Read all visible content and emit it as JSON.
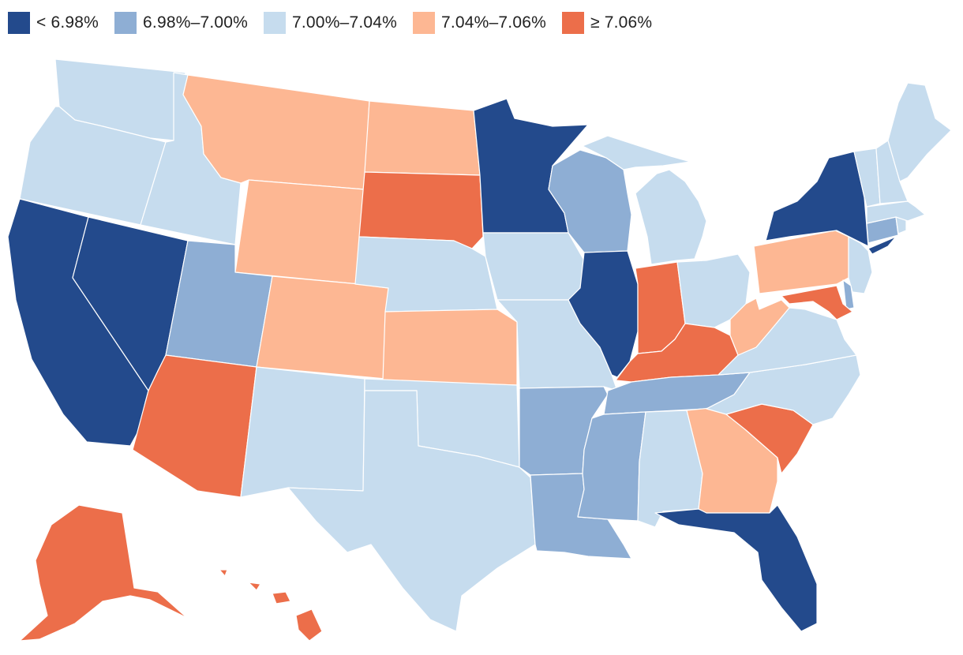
{
  "legend": [
    {
      "id": "c1",
      "label": "< 6.98%",
      "color": "#234a8c"
    },
    {
      "id": "c2",
      "label": "6.98%–7.00%",
      "color": "#8eaed4"
    },
    {
      "id": "c3",
      "label": "7.00%–7.04%",
      "color": "#c6dcee"
    },
    {
      "id": "c4",
      "label": "7.04%–7.06%",
      "color": "#fdb793"
    },
    {
      "id": "c5",
      "label": "≥ 7.06%",
      "color": "#ec6e4a"
    }
  ],
  "states": {
    "WA": "c3",
    "OR": "c3",
    "CA": "c1",
    "NV": "c1",
    "ID": "c3",
    "MT": "c4",
    "WY": "c4",
    "UT": "c2",
    "AZ": "c5",
    "CO": "c4",
    "NM": "c3",
    "ND": "c4",
    "SD": "c5",
    "NE": "c3",
    "KS": "c4",
    "OK": "c3",
    "TX": "c3",
    "MN": "c1",
    "IA": "c3",
    "MO": "c3",
    "AR": "c2",
    "LA": "c2",
    "WI": "c2",
    "IL": "c1",
    "MI": "c3",
    "IN": "c5",
    "OH": "c3",
    "KY": "c5",
    "TN": "c2",
    "MS": "c2",
    "AL": "c3",
    "GA": "c4",
    "FL": "c1",
    "SC": "c5",
    "NC": "c3",
    "VA": "c3",
    "WV": "c4",
    "PA": "c4",
    "NY": "c1",
    "NJ": "c3",
    "DE": "c2",
    "MD": "c5",
    "CT": "c2",
    "RI": "c3",
    "MA": "c3",
    "VT": "c3",
    "NH": "c3",
    "ME": "c3",
    "AK": "c5",
    "HI": "c5"
  }
}
